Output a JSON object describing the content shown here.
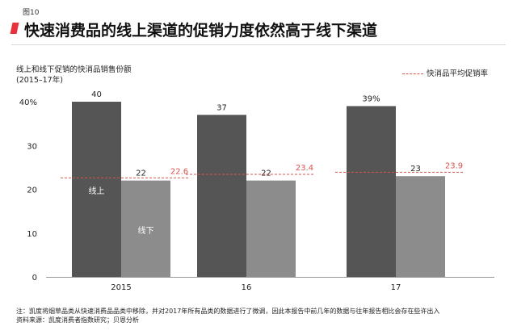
{
  "figure_label": "图10",
  "title": "快速消费品的线上渠道的促销力度依然高于线下渠道",
  "y_title_line1": "线上和线下促销的快消品销售份额",
  "y_title_line2": "(2015–17年)",
  "legend_label": "快消品平均促销率",
  "note_line1": "注：凯度将烟草品类从快速消费品品类中移除，并对2017年所有品类的数据进行了微调，因此本报告中前几年的数据与往年报告相比会存在些许出入",
  "note_line2": "资料来源：凯度消费者指数研究；贝恩分析",
  "colors": {
    "online": "#555555",
    "offline": "#8c8c8c",
    "promo_line": "#d9534f",
    "accent": "#e8313b"
  },
  "chart_data": {
    "type": "bar",
    "categories": [
      "2015",
      "16",
      "17"
    ],
    "series": [
      {
        "name": "线上",
        "values": [
          40,
          37,
          39
        ],
        "value_labels": [
          "40",
          "37",
          "39%"
        ]
      },
      {
        "name": "线下",
        "values": [
          22,
          22,
          23
        ],
        "value_labels": [
          "22",
          "22",
          "23"
        ]
      }
    ],
    "avg_promo_rate": {
      "name": "快消品平均促销率",
      "values": [
        22.6,
        23.4,
        23.9
      ],
      "value_labels": [
        "22.6",
        "23.4",
        "23.9"
      ]
    },
    "yticks": [
      0,
      10,
      20,
      30,
      40
    ],
    "ytick_labels": [
      "0",
      "10",
      "20",
      "30",
      "40%"
    ],
    "ylim": [
      0,
      40
    ],
    "grid": false,
    "legend_position": "top-right"
  }
}
